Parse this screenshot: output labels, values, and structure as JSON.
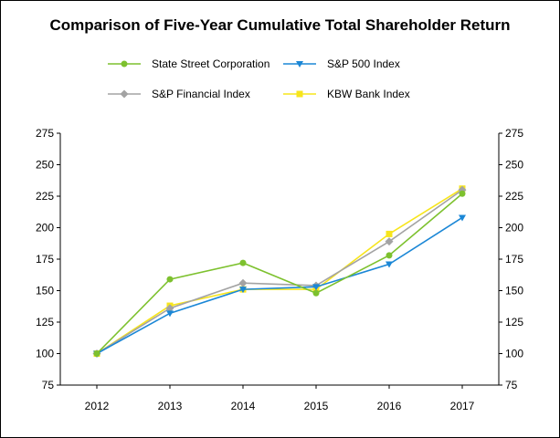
{
  "chart_data": {
    "type": "line",
    "title": "Comparison of Five-Year Cumulative Total Shareholder Return",
    "xlabel": "",
    "ylabel": "",
    "categories": [
      "2012",
      "2013",
      "2014",
      "2015",
      "2016",
      "2017"
    ],
    "ylim": [
      75,
      275
    ],
    "yticks": [
      "75",
      "100",
      "125",
      "150",
      "175",
      "200",
      "225",
      "250",
      "275"
    ],
    "legend_position": "top",
    "series": [
      {
        "name": "State Street Corporation",
        "color": "#7DC12E",
        "marker": "circle",
        "values": [
          100,
          159,
          172,
          148,
          178,
          227
        ]
      },
      {
        "name": "S&P 500 Index",
        "color": "#1B87D6",
        "marker": "triangle-down",
        "values": [
          100,
          132,
          151,
          153,
          171,
          208
        ]
      },
      {
        "name": "S&P Financial Index",
        "color": "#A3A3A3",
        "marker": "diamond",
        "values": [
          100,
          136,
          156,
          154,
          189,
          230
        ]
      },
      {
        "name": "KBW Bank Index",
        "color": "#F7E51C",
        "marker": "square",
        "values": [
          100,
          138,
          151,
          151,
          195,
          231
        ]
      }
    ]
  }
}
